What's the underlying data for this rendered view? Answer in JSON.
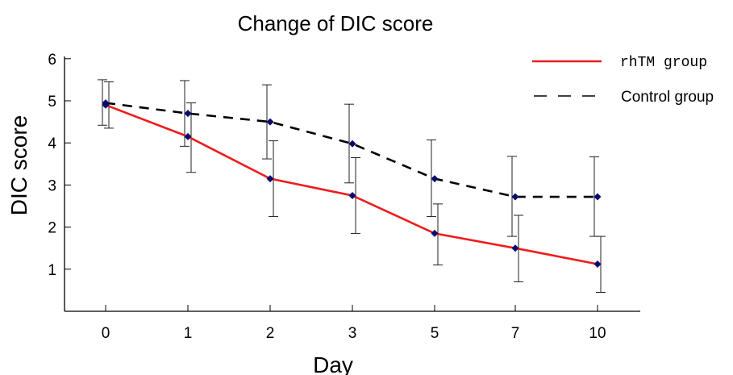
{
  "chart_data": {
    "type": "line",
    "title": "Change of DIC score",
    "xlabel": "Day",
    "ylabel": "DIC score",
    "categories": [
      "0",
      "1",
      "2",
      "3",
      "5",
      "7",
      "10"
    ],
    "yticks": [
      "1",
      "2",
      "3",
      "4",
      "5",
      "6"
    ],
    "ylim": [
      0,
      6
    ],
    "grid": false,
    "legend_position": "top-right",
    "series": [
      {
        "name": "rhTM group",
        "color": "#ee1c1c",
        "line_style": "solid",
        "values": [
          4.9,
          4.15,
          3.15,
          2.75,
          1.85,
          1.5,
          1.12
        ],
        "error_high": [
          5.45,
          4.95,
          4.05,
          3.65,
          2.55,
          2.28,
          1.78
        ],
        "error_low": [
          4.35,
          3.3,
          2.25,
          1.85,
          1.1,
          0.7,
          0.45
        ]
      },
      {
        "name": "Control group",
        "color": "#000000",
        "line_style": "dashed",
        "values": [
          4.95,
          4.7,
          4.5,
          3.98,
          3.15,
          2.72,
          2.72
        ],
        "error_high": [
          5.5,
          5.48,
          5.38,
          4.92,
          4.07,
          3.68,
          3.67
        ],
        "error_low": [
          4.42,
          3.92,
          3.62,
          3.05,
          2.25,
          1.78,
          1.78
        ]
      }
    ],
    "marker": {
      "shape": "diamond",
      "color": "#0a0a6e"
    }
  }
}
